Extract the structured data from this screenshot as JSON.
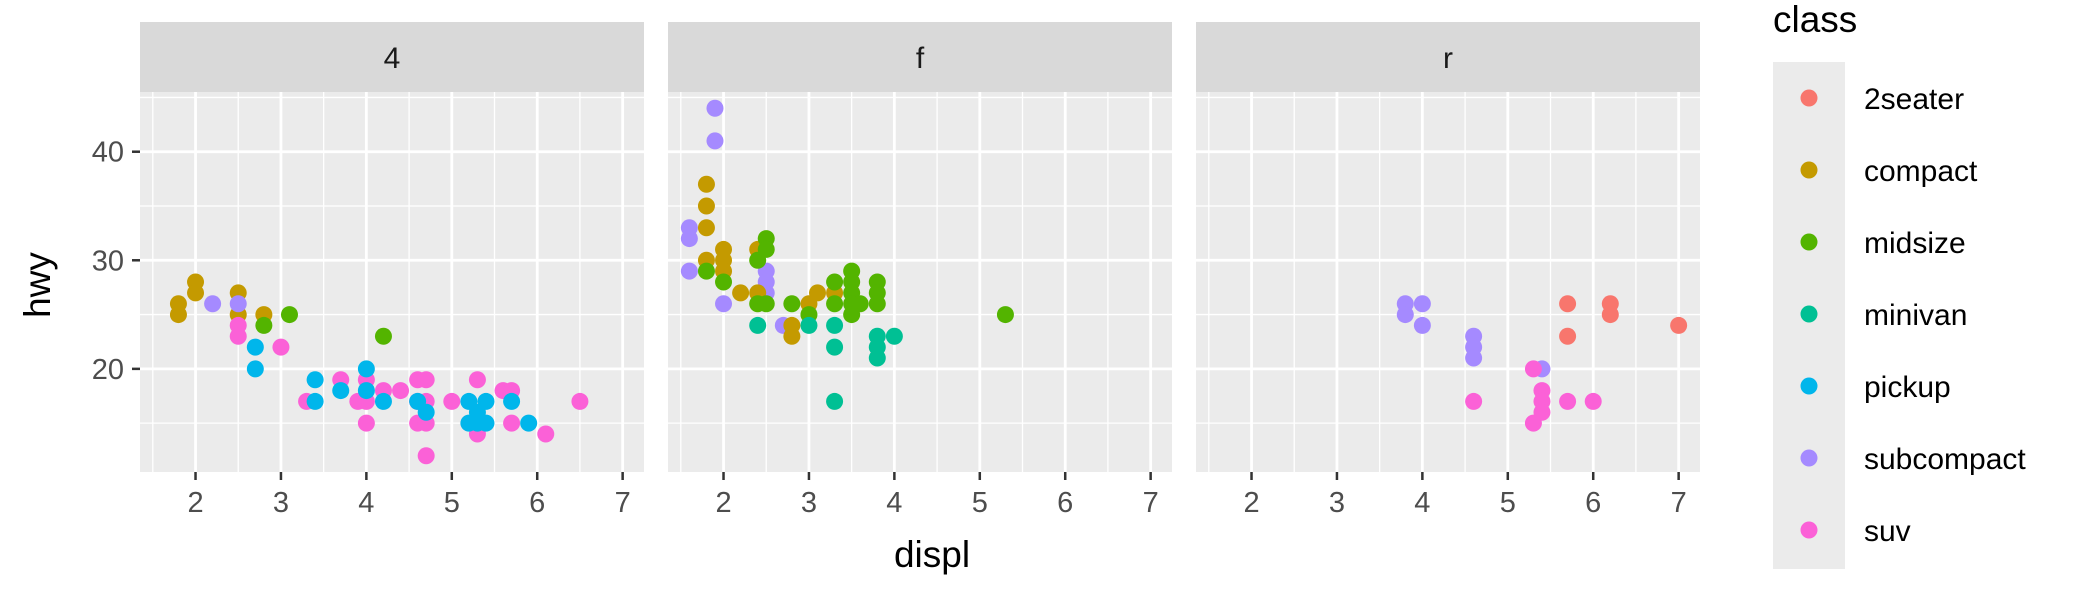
{
  "chart_data": {
    "type": "scatter",
    "facet_by": "drv",
    "xlabel": "displ",
    "ylabel": "hwy",
    "xlim": [
      1.35,
      7.25
    ],
    "ylim": [
      10.5,
      45.5
    ],
    "x_ticks": [
      2,
      3,
      4,
      5,
      6,
      7
    ],
    "y_ticks": [
      20,
      30,
      40
    ],
    "grid": true,
    "legend": {
      "title": "class",
      "position": "right",
      "entries": [
        {
          "label": "2seater",
          "color": "#F8766D"
        },
        {
          "label": "compact",
          "color": "#C49A00"
        },
        {
          "label": "midsize",
          "color": "#53B400"
        },
        {
          "label": "minivan",
          "color": "#00C094"
        },
        {
          "label": "pickup",
          "color": "#00B6EB"
        },
        {
          "label": "subcompact",
          "color": "#A58AFF"
        },
        {
          "label": "suv",
          "color": "#FB61D7"
        }
      ]
    },
    "panels": [
      {
        "label": "4",
        "points": [
          {
            "x": 1.8,
            "y": 26,
            "class": "compact"
          },
          {
            "x": 1.8,
            "y": 25,
            "class": "compact"
          },
          {
            "x": 2.0,
            "y": 28,
            "class": "compact"
          },
          {
            "x": 2.0,
            "y": 27,
            "class": "compact"
          },
          {
            "x": 2.5,
            "y": 27,
            "class": "compact"
          },
          {
            "x": 2.5,
            "y": 25,
            "class": "compact"
          },
          {
            "x": 2.8,
            "y": 25,
            "class": "compact"
          },
          {
            "x": 2.8,
            "y": 24,
            "class": "midsize"
          },
          {
            "x": 3.1,
            "y": 25,
            "class": "midsize"
          },
          {
            "x": 4.2,
            "y": 23,
            "class": "midsize"
          },
          {
            "x": 2.2,
            "y": 26,
            "class": "subcompact"
          },
          {
            "x": 2.5,
            "y": 26,
            "class": "subcompact"
          },
          {
            "x": 2.5,
            "y": 24,
            "class": "suv"
          },
          {
            "x": 2.5,
            "y": 23,
            "class": "suv"
          },
          {
            "x": 3.0,
            "y": 22,
            "class": "suv"
          },
          {
            "x": 3.3,
            "y": 17,
            "class": "suv"
          },
          {
            "x": 3.7,
            "y": 19,
            "class": "suv"
          },
          {
            "x": 3.9,
            "y": 17,
            "class": "suv"
          },
          {
            "x": 4.0,
            "y": 19,
            "class": "suv"
          },
          {
            "x": 4.0,
            "y": 17,
            "class": "suv"
          },
          {
            "x": 4.0,
            "y": 15,
            "class": "suv"
          },
          {
            "x": 4.2,
            "y": 18,
            "class": "suv"
          },
          {
            "x": 4.4,
            "y": 18,
            "class": "suv"
          },
          {
            "x": 4.6,
            "y": 19,
            "class": "suv"
          },
          {
            "x": 4.6,
            "y": 17,
            "class": "suv"
          },
          {
            "x": 4.6,
            "y": 15,
            "class": "suv"
          },
          {
            "x": 4.7,
            "y": 19,
            "class": "suv"
          },
          {
            "x": 4.7,
            "y": 17,
            "class": "suv"
          },
          {
            "x": 4.7,
            "y": 15,
            "class": "suv"
          },
          {
            "x": 4.7,
            "y": 12,
            "class": "suv"
          },
          {
            "x": 5.0,
            "y": 17,
            "class": "suv"
          },
          {
            "x": 5.3,
            "y": 19,
            "class": "suv"
          },
          {
            "x": 5.3,
            "y": 14,
            "class": "suv"
          },
          {
            "x": 5.6,
            "y": 18,
            "class": "suv"
          },
          {
            "x": 5.7,
            "y": 18,
            "class": "suv"
          },
          {
            "x": 5.7,
            "y": 15,
            "class": "suv"
          },
          {
            "x": 6.1,
            "y": 14,
            "class": "suv"
          },
          {
            "x": 6.5,
            "y": 17,
            "class": "suv"
          },
          {
            "x": 2.7,
            "y": 22,
            "class": "pickup"
          },
          {
            "x": 2.7,
            "y": 20,
            "class": "pickup"
          },
          {
            "x": 3.4,
            "y": 19,
            "class": "pickup"
          },
          {
            "x": 3.4,
            "y": 17,
            "class": "pickup"
          },
          {
            "x": 3.7,
            "y": 18,
            "class": "pickup"
          },
          {
            "x": 4.0,
            "y": 20,
            "class": "pickup"
          },
          {
            "x": 4.0,
            "y": 18,
            "class": "pickup"
          },
          {
            "x": 4.2,
            "y": 17,
            "class": "pickup"
          },
          {
            "x": 4.6,
            "y": 17,
            "class": "pickup"
          },
          {
            "x": 4.7,
            "y": 16,
            "class": "pickup"
          },
          {
            "x": 5.2,
            "y": 17,
            "class": "pickup"
          },
          {
            "x": 5.2,
            "y": 15,
            "class": "pickup"
          },
          {
            "x": 5.3,
            "y": 16,
            "class": "pickup"
          },
          {
            "x": 5.3,
            "y": 15,
            "class": "pickup"
          },
          {
            "x": 5.4,
            "y": 17,
            "class": "pickup"
          },
          {
            "x": 5.4,
            "y": 15,
            "class": "pickup"
          },
          {
            "x": 5.7,
            "y": 17,
            "class": "pickup"
          },
          {
            "x": 5.9,
            "y": 15,
            "class": "pickup"
          }
        ]
      },
      {
        "label": "f",
        "points": [
          {
            "x": 1.6,
            "y": 33,
            "class": "subcompact"
          },
          {
            "x": 1.6,
            "y": 32,
            "class": "subcompact"
          },
          {
            "x": 1.6,
            "y": 29,
            "class": "subcompact"
          },
          {
            "x": 1.9,
            "y": 44,
            "class": "subcompact"
          },
          {
            "x": 1.9,
            "y": 41,
            "class": "subcompact"
          },
          {
            "x": 2.0,
            "y": 26,
            "class": "subcompact"
          },
          {
            "x": 2.5,
            "y": 29,
            "class": "subcompact"
          },
          {
            "x": 2.5,
            "y": 28,
            "class": "subcompact"
          },
          {
            "x": 2.5,
            "y": 27,
            "class": "subcompact"
          },
          {
            "x": 2.7,
            "y": 24,
            "class": "subcompact"
          },
          {
            "x": 1.8,
            "y": 37,
            "class": "compact"
          },
          {
            "x": 1.8,
            "y": 35,
            "class": "compact"
          },
          {
            "x": 1.8,
            "y": 33,
            "class": "compact"
          },
          {
            "x": 1.8,
            "y": 30,
            "class": "compact"
          },
          {
            "x": 2.0,
            "y": 31,
            "class": "compact"
          },
          {
            "x": 2.0,
            "y": 30,
            "class": "compact"
          },
          {
            "x": 2.0,
            "y": 29,
            "class": "compact"
          },
          {
            "x": 2.2,
            "y": 27,
            "class": "compact"
          },
          {
            "x": 2.4,
            "y": 31,
            "class": "compact"
          },
          {
            "x": 2.4,
            "y": 27,
            "class": "compact"
          },
          {
            "x": 2.8,
            "y": 24,
            "class": "compact"
          },
          {
            "x": 2.8,
            "y": 23,
            "class": "compact"
          },
          {
            "x": 3.0,
            "y": 26,
            "class": "compact"
          },
          {
            "x": 3.1,
            "y": 27,
            "class": "compact"
          },
          {
            "x": 3.3,
            "y": 27,
            "class": "compact"
          },
          {
            "x": 1.8,
            "y": 29,
            "class": "midsize"
          },
          {
            "x": 2.0,
            "y": 28,
            "class": "midsize"
          },
          {
            "x": 2.4,
            "y": 30,
            "class": "midsize"
          },
          {
            "x": 2.4,
            "y": 26,
            "class": "midsize"
          },
          {
            "x": 2.5,
            "y": 32,
            "class": "midsize"
          },
          {
            "x": 2.5,
            "y": 31,
            "class": "midsize"
          },
          {
            "x": 2.5,
            "y": 26,
            "class": "midsize"
          },
          {
            "x": 2.8,
            "y": 26,
            "class": "midsize"
          },
          {
            "x": 3.0,
            "y": 25,
            "class": "midsize"
          },
          {
            "x": 3.3,
            "y": 28,
            "class": "midsize"
          },
          {
            "x": 3.3,
            "y": 26,
            "class": "midsize"
          },
          {
            "x": 3.5,
            "y": 29,
            "class": "midsize"
          },
          {
            "x": 3.5,
            "y": 28,
            "class": "midsize"
          },
          {
            "x": 3.5,
            "y": 27,
            "class": "midsize"
          },
          {
            "x": 3.5,
            "y": 26,
            "class": "midsize"
          },
          {
            "x": 3.5,
            "y": 25,
            "class": "midsize"
          },
          {
            "x": 3.6,
            "y": 26,
            "class": "midsize"
          },
          {
            "x": 3.8,
            "y": 28,
            "class": "midsize"
          },
          {
            "x": 3.8,
            "y": 27,
            "class": "midsize"
          },
          {
            "x": 3.8,
            "y": 26,
            "class": "midsize"
          },
          {
            "x": 5.3,
            "y": 25,
            "class": "midsize"
          },
          {
            "x": 2.4,
            "y": 24,
            "class": "minivan"
          },
          {
            "x": 3.0,
            "y": 24,
            "class": "minivan"
          },
          {
            "x": 3.3,
            "y": 24,
            "class": "minivan"
          },
          {
            "x": 3.3,
            "y": 22,
            "class": "minivan"
          },
          {
            "x": 3.3,
            "y": 17,
            "class": "minivan"
          },
          {
            "x": 3.8,
            "y": 23,
            "class": "minivan"
          },
          {
            "x": 3.8,
            "y": 22,
            "class": "minivan"
          },
          {
            "x": 3.8,
            "y": 21,
            "class": "minivan"
          },
          {
            "x": 4.0,
            "y": 23,
            "class": "minivan"
          }
        ]
      },
      {
        "label": "r",
        "points": [
          {
            "x": 3.8,
            "y": 26,
            "class": "subcompact"
          },
          {
            "x": 3.8,
            "y": 25,
            "class": "subcompact"
          },
          {
            "x": 4.0,
            "y": 26,
            "class": "subcompact"
          },
          {
            "x": 4.0,
            "y": 24,
            "class": "subcompact"
          },
          {
            "x": 4.6,
            "y": 23,
            "class": "subcompact"
          },
          {
            "x": 4.6,
            "y": 22,
            "class": "subcompact"
          },
          {
            "x": 4.6,
            "y": 21,
            "class": "subcompact"
          },
          {
            "x": 5.4,
            "y": 20,
            "class": "subcompact"
          },
          {
            "x": 5.7,
            "y": 26,
            "class": "2seater"
          },
          {
            "x": 5.7,
            "y": 23,
            "class": "2seater"
          },
          {
            "x": 6.2,
            "y": 26,
            "class": "2seater"
          },
          {
            "x": 6.2,
            "y": 25,
            "class": "2seater"
          },
          {
            "x": 7.0,
            "y": 24,
            "class": "2seater"
          },
          {
            "x": 4.6,
            "y": 17,
            "class": "suv"
          },
          {
            "x": 5.3,
            "y": 20,
            "class": "suv"
          },
          {
            "x": 5.3,
            "y": 15,
            "class": "suv"
          },
          {
            "x": 5.4,
            "y": 18,
            "class": "suv"
          },
          {
            "x": 5.4,
            "y": 17,
            "class": "suv"
          },
          {
            "x": 5.4,
            "y": 16,
            "class": "suv"
          },
          {
            "x": 5.7,
            "y": 17,
            "class": "suv"
          },
          {
            "x": 6.0,
            "y": 17,
            "class": "suv"
          }
        ]
      }
    ]
  }
}
